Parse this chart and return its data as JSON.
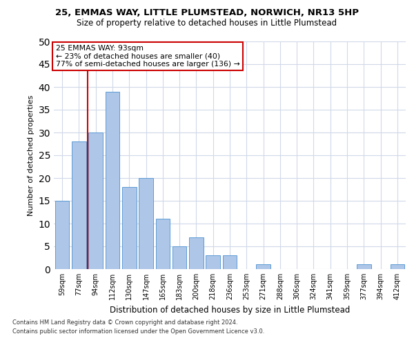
{
  "title_line1": "25, EMMAS WAY, LITTLE PLUMSTEAD, NORWICH, NR13 5HP",
  "title_line2": "Size of property relative to detached houses in Little Plumstead",
  "xlabel": "Distribution of detached houses by size in Little Plumstead",
  "ylabel": "Number of detached properties",
  "categories": [
    "59sqm",
    "77sqm",
    "94sqm",
    "112sqm",
    "130sqm",
    "147sqm",
    "165sqm",
    "183sqm",
    "200sqm",
    "218sqm",
    "236sqm",
    "253sqm",
    "271sqm",
    "288sqm",
    "306sqm",
    "324sqm",
    "341sqm",
    "359sqm",
    "377sqm",
    "394sqm",
    "412sqm"
  ],
  "values": [
    15,
    28,
    30,
    39,
    18,
    20,
    11,
    5,
    7,
    3,
    3,
    0,
    1,
    0,
    0,
    0,
    0,
    0,
    1,
    0,
    1
  ],
  "bar_color": "#aec6e8",
  "bar_edgecolor": "#5b9bd5",
  "vline_color": "#cc0000",
  "vline_index": 2,
  "annotation_line1": "25 EMMAS WAY: 93sqm",
  "annotation_line2": "← 23% of detached houses are smaller (40)",
  "annotation_line3": "77% of semi-detached houses are larger (136) →",
  "annotation_box_color": "#cc0000",
  "ylim": [
    0,
    50
  ],
  "yticks": [
    0,
    5,
    10,
    15,
    20,
    25,
    30,
    35,
    40,
    45,
    50
  ],
  "footer_line1": "Contains HM Land Registry data © Crown copyright and database right 2024.",
  "footer_line2": "Contains public sector information licensed under the Open Government Licence v3.0.",
  "background_color": "#ffffff",
  "grid_color": "#d0d8e8"
}
